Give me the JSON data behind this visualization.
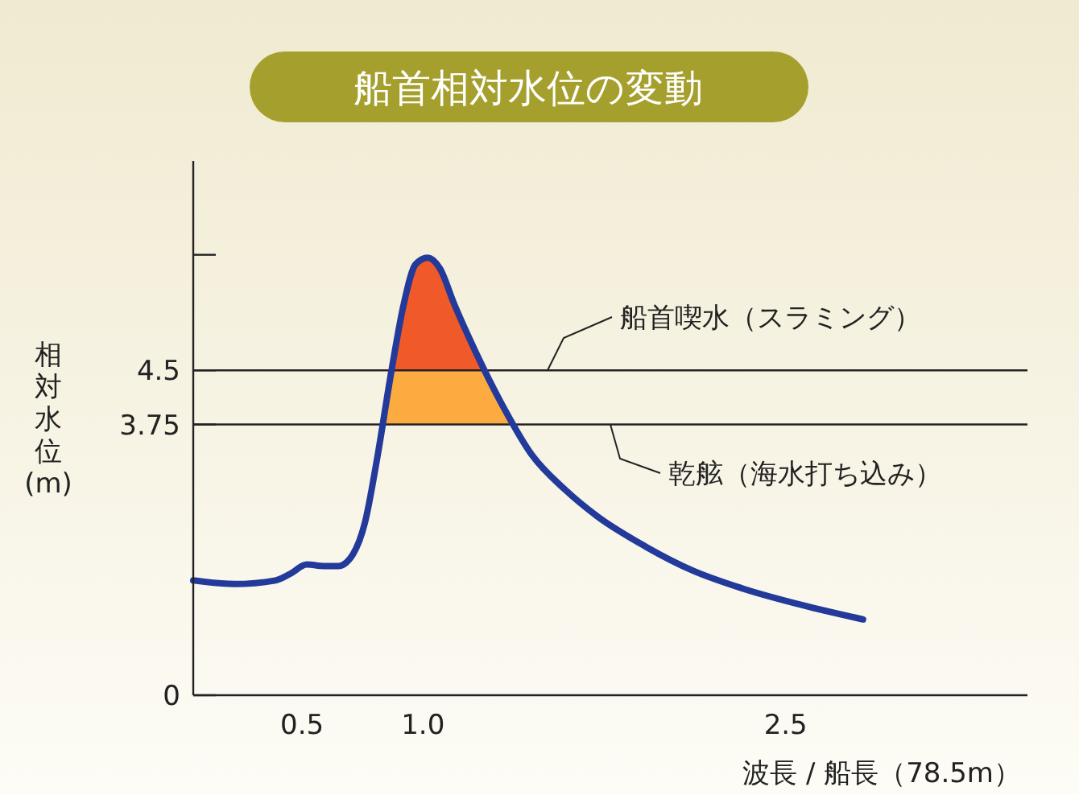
{
  "chart_data": {
    "type": "line",
    "title": "船首相対水位の変動",
    "xlabel": "波長 / 船長（78.5m）",
    "ylabel": "相対水位(m)",
    "xlim": [
      0.05,
      3.5
    ],
    "xticks": [
      0.5,
      {
        "value": 1,
        "label": "1.0"
      },
      2.5
    ],
    "ylim": [
      0,
      7.4
    ],
    "yticks": [
      0,
      3.75,
      4.5,
      {
        "value": 6.1,
        "label": null
      }
    ],
    "x": [
      0.05,
      0.22,
      0.39,
      0.45,
      0.52,
      0.59,
      0.65,
      0.71,
      0.76,
      0.81,
      0.87,
      0.92,
      0.97,
      1.02,
      1.07,
      1.13,
      1.22,
      1.32,
      1.45,
      1.59,
      1.72,
      1.92,
      2.12,
      2.32,
      2.59,
      2.82
    ],
    "series": [
      {
        "color": "#233a9b",
        "values": [
          1.59,
          1.54,
          1.59,
          1.68,
          1.81,
          1.79,
          1.79,
          1.95,
          2.39,
          3.27,
          4.5,
          5.41,
          5.97,
          6.06,
          5.91,
          5.41,
          4.74,
          4.07,
          3.33,
          2.84,
          2.48,
          2.06,
          1.72,
          1.48,
          1.23,
          1.05
        ]
      }
    ],
    "ref_lines": [
      {
        "axis": "y",
        "value": 4.5,
        "label": "船首喫水（スラミング）",
        "color": "#222222"
      },
      {
        "axis": "y",
        "value": 3.75,
        "label": "乾舷（海水打ち込み）",
        "color": "#222222"
      }
    ],
    "bands": [
      {
        "axis": "y",
        "from": 4.5,
        "to": 7.4,
        "color": "#f05a28"
      },
      {
        "axis": "y",
        "from": 3.75,
        "to": 4.5,
        "color": "#fbab40"
      }
    ],
    "grid": false,
    "line_style": "solid"
  }
}
